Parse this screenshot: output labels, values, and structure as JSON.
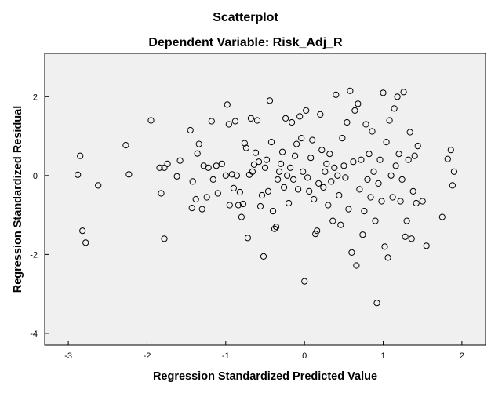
{
  "chart_data": {
    "type": "scatter",
    "title": "Scatterplot",
    "subtitle": "Dependent Variable: Risk_Adj_R",
    "xlabel": "Regression Standardized Predicted Value",
    "ylabel": "Regression Standardized Residual",
    "xlim": [
      -3.3,
      2.3
    ],
    "ylim": [
      -4.3,
      3.1
    ],
    "xticks": [
      -3,
      -2,
      -1,
      0,
      1,
      2
    ],
    "yticks": [
      -4,
      -2,
      0,
      2
    ],
    "grid": false,
    "colors": {
      "plot_bg": "#f0f0f0",
      "marker": "#000000"
    },
    "points": [
      [
        -2.88,
        0.02
      ],
      [
        -2.85,
        0.5
      ],
      [
        -2.82,
        -1.4
      ],
      [
        -2.78,
        -1.7
      ],
      [
        -2.62,
        -0.25
      ],
      [
        -2.27,
        0.77
      ],
      [
        -2.23,
        0.03
      ],
      [
        -1.95,
        1.4
      ],
      [
        -1.84,
        0.2
      ],
      [
        -1.82,
        -0.45
      ],
      [
        -1.78,
        0.2
      ],
      [
        -1.78,
        -1.6
      ],
      [
        -1.74,
        0.3
      ],
      [
        -1.62,
        -0.02
      ],
      [
        -1.58,
        0.38
      ],
      [
        -1.45,
        1.15
      ],
      [
        -1.43,
        -0.82
      ],
      [
        -1.42,
        -0.15
      ],
      [
        -1.38,
        -0.6
      ],
      [
        -1.36,
        0.56
      ],
      [
        -1.34,
        0.8
      ],
      [
        -1.3,
        -0.85
      ],
      [
        -1.28,
        0.25
      ],
      [
        -1.24,
        -0.55
      ],
      [
        -1.22,
        0.2
      ],
      [
        -1.18,
        1.38
      ],
      [
        -1.16,
        -0.1
      ],
      [
        -1.12,
        0.25
      ],
      [
        -1.1,
        -0.45
      ],
      [
        -1.05,
        0.3
      ],
      [
        -1.0,
        0.0
      ],
      [
        -0.98,
        1.8
      ],
      [
        -0.96,
        1.3
      ],
      [
        -0.95,
        -0.75
      ],
      [
        -0.92,
        0.03
      ],
      [
        -0.9,
        -0.32
      ],
      [
        -0.88,
        1.38
      ],
      [
        -0.86,
        0.0
      ],
      [
        -0.84,
        -0.75
      ],
      [
        -0.82,
        -0.42
      ],
      [
        -0.8,
        -1.05
      ],
      [
        -0.78,
        -0.72
      ],
      [
        -0.76,
        0.82
      ],
      [
        -0.74,
        0.7
      ],
      [
        -0.72,
        -1.58
      ],
      [
        -0.7,
        0.02
      ],
      [
        -0.68,
        1.45
      ],
      [
        -0.66,
        0.1
      ],
      [
        -0.64,
        0.28
      ],
      [
        -0.62,
        0.58
      ],
      [
        -0.6,
        1.4
      ],
      [
        -0.58,
        0.35
      ],
      [
        -0.56,
        -0.78
      ],
      [
        -0.54,
        -0.5
      ],
      [
        -0.52,
        -2.05
      ],
      [
        -0.5,
        0.2
      ],
      [
        -0.48,
        0.4
      ],
      [
        -0.46,
        -0.4
      ],
      [
        -0.44,
        1.9
      ],
      [
        -0.42,
        0.85
      ],
      [
        -0.4,
        -0.9
      ],
      [
        -0.38,
        -1.35
      ],
      [
        -0.36,
        -1.3
      ],
      [
        -0.34,
        -0.1
      ],
      [
        -0.32,
        0.1
      ],
      [
        -0.3,
        0.3
      ],
      [
        -0.28,
        0.6
      ],
      [
        -0.26,
        -0.3
      ],
      [
        -0.24,
        1.45
      ],
      [
        -0.22,
        0.0
      ],
      [
        -0.2,
        -0.7
      ],
      [
        -0.18,
        0.2
      ],
      [
        -0.16,
        1.35
      ],
      [
        -0.14,
        -0.1
      ],
      [
        -0.12,
        0.5
      ],
      [
        -0.1,
        0.8
      ],
      [
        -0.08,
        -0.35
      ],
      [
        -0.06,
        1.5
      ],
      [
        -0.04,
        0.95
      ],
      [
        -0.02,
        0.1
      ],
      [
        0.0,
        -2.68
      ],
      [
        0.02,
        1.65
      ],
      [
        0.04,
        -0.05
      ],
      [
        0.06,
        -0.4
      ],
      [
        0.08,
        0.45
      ],
      [
        0.1,
        0.9
      ],
      [
        0.12,
        -0.6
      ],
      [
        0.14,
        -1.48
      ],
      [
        0.16,
        -1.4
      ],
      [
        0.18,
        -0.2
      ],
      [
        0.2,
        1.55
      ],
      [
        0.22,
        0.65
      ],
      [
        0.24,
        -0.3
      ],
      [
        0.26,
        0.1
      ],
      [
        0.28,
        0.3
      ],
      [
        0.3,
        -0.75
      ],
      [
        0.32,
        0.55
      ],
      [
        0.34,
        -0.15
      ],
      [
        0.36,
        -1.15
      ],
      [
        0.38,
        0.2
      ],
      [
        0.4,
        2.05
      ],
      [
        0.42,
        0.0
      ],
      [
        0.44,
        -0.5
      ],
      [
        0.46,
        -1.25
      ],
      [
        0.48,
        0.95
      ],
      [
        0.5,
        0.25
      ],
      [
        0.52,
        -0.05
      ],
      [
        0.54,
        1.35
      ],
      [
        0.56,
        -0.85
      ],
      [
        0.58,
        2.15
      ],
      [
        0.6,
        -1.95
      ],
      [
        0.62,
        0.35
      ],
      [
        0.64,
        1.65
      ],
      [
        0.66,
        -2.28
      ],
      [
        0.68,
        1.82
      ],
      [
        0.7,
        -0.35
      ],
      [
        0.72,
        0.4
      ],
      [
        0.74,
        -1.5
      ],
      [
        0.76,
        -0.9
      ],
      [
        0.78,
        1.3
      ],
      [
        0.8,
        -0.1
      ],
      [
        0.82,
        0.55
      ],
      [
        0.84,
        -0.55
      ],
      [
        0.86,
        1.12
      ],
      [
        0.88,
        0.1
      ],
      [
        0.9,
        -1.15
      ],
      [
        0.92,
        -3.23
      ],
      [
        0.94,
        -0.2
      ],
      [
        0.96,
        0.4
      ],
      [
        0.98,
        -0.65
      ],
      [
        1.0,
        2.1
      ],
      [
        1.02,
        -1.8
      ],
      [
        1.04,
        0.85
      ],
      [
        1.06,
        -2.08
      ],
      [
        1.08,
        1.4
      ],
      [
        1.1,
        0.0
      ],
      [
        1.12,
        -0.55
      ],
      [
        1.14,
        1.7
      ],
      [
        1.16,
        0.25
      ],
      [
        1.18,
        2.0
      ],
      [
        1.2,
        0.55
      ],
      [
        1.22,
        -0.65
      ],
      [
        1.24,
        -0.1
      ],
      [
        1.26,
        2.12
      ],
      [
        1.28,
        -1.55
      ],
      [
        1.3,
        -1.15
      ],
      [
        1.32,
        0.4
      ],
      [
        1.34,
        1.1
      ],
      [
        1.36,
        -1.6
      ],
      [
        1.38,
        -0.4
      ],
      [
        1.4,
        0.5
      ],
      [
        1.42,
        -0.7
      ],
      [
        1.44,
        0.75
      ],
      [
        1.5,
        -0.65
      ],
      [
        1.55,
        -1.78
      ],
      [
        1.75,
        -1.05
      ],
      [
        1.82,
        0.42
      ],
      [
        1.86,
        0.65
      ],
      [
        1.88,
        -0.25
      ],
      [
        1.9,
        0.1
      ]
    ]
  }
}
